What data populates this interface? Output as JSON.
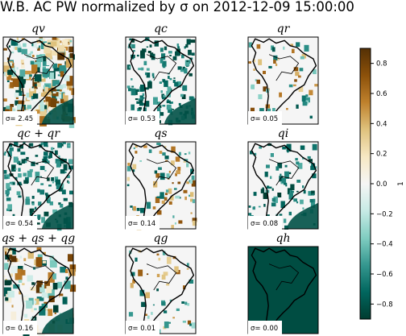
{
  "figure": {
    "title": "W.B. AC PW normalized by σ on 2012-12-09 15:00:00"
  },
  "colormap": {
    "name": "BrBG",
    "stops": [
      "#543005",
      "#8c510a",
      "#bf812d",
      "#dfc27d",
      "#f6e8c3",
      "#f5f5f5",
      "#c7eae5",
      "#80cdc1",
      "#35978f",
      "#01665e",
      "#003c30"
    ]
  },
  "chart_data": {
    "type": "heatmap",
    "title": "W.B. AC PW normalized by σ on 2012-12-09 15:00:00",
    "panels": [
      {
        "title": "qv",
        "sigma_label": "σ= 2.45",
        "sigma": 2.45,
        "field": "mixed",
        "coverage": 0.95
      },
      {
        "title": "qc",
        "sigma_label": "σ= 0.53",
        "sigma": 0.53,
        "field": "negative",
        "coverage": 0.45
      },
      {
        "title": "qr",
        "sigma_label": "σ= 0.05",
        "sigma": 0.05,
        "field": "sparse",
        "coverage": 0.08
      },
      {
        "title": "qc + qr",
        "sigma_label": "σ= 0.54",
        "sigma": 0.54,
        "field": "negative",
        "coverage": 0.45
      },
      {
        "title": "qs",
        "sigma_label": "σ= 0.14",
        "sigma": 0.14,
        "field": "sparse",
        "coverage": 0.2
      },
      {
        "title": "qi",
        "sigma_label": "σ= 0.08",
        "sigma": 0.08,
        "field": "negative",
        "coverage": 0.2
      },
      {
        "title": "qs + qs + qg",
        "sigma_label": "σ= 0.16",
        "sigma": 0.16,
        "field": "mixed",
        "coverage": 0.3
      },
      {
        "title": "qg",
        "sigma_label": "σ= 0.01",
        "sigma": 0.01,
        "field": "sparse",
        "coverage": 0.05
      },
      {
        "title": "qh",
        "sigma_label": "σ= 0.00",
        "sigma": 0.0,
        "field": "uniform",
        "coverage": 1.0
      }
    ],
    "colorbar": {
      "range": [
        -0.9,
        0.9
      ],
      "ticks": [
        0.8,
        0.6,
        0.4,
        0.2,
        0.0,
        -0.2,
        -0.4,
        -0.6,
        -0.8
      ],
      "tick_labels": [
        "0.8",
        "0.6",
        "0.4",
        "0.2",
        "0.0",
        "−0.2",
        "−0.4",
        "−0.6",
        "−0.8"
      ],
      "label": "1"
    }
  }
}
